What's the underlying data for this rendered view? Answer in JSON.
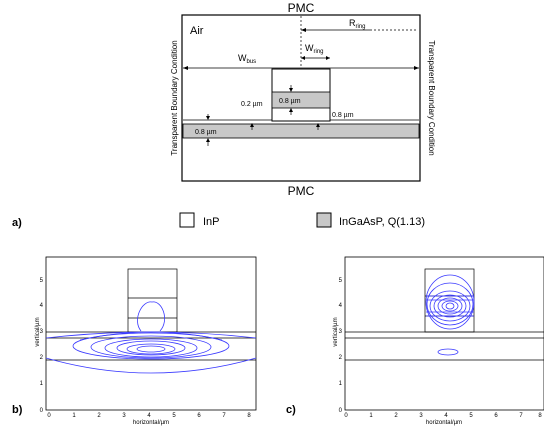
{
  "schematic": {
    "top_boundary": "PMC",
    "bottom_boundary": "PMC",
    "left_boundary": "Transparent Boundary Condition",
    "right_boundary": "Transparent Boundary Condition",
    "medium": "Air",
    "r_ring": {
      "main": "R",
      "sub": "ring"
    },
    "w_bus": {
      "main": "W",
      "sub": "bus"
    },
    "w_ring": {
      "main": "W",
      "sub": "ring"
    },
    "ring_thickness": "0.8 µm",
    "gap_thickness": "0.2 µm",
    "rib_height": "0.8 µm",
    "bus_thickness": "0.8 µm"
  },
  "legend": {
    "panel_label": "a)",
    "items": [
      {
        "label": "InP",
        "color": "#ffffff"
      },
      {
        "label": "InGaAsP, Q(1.13)",
        "color": "#c8c8c8"
      }
    ]
  },
  "plots": [
    {
      "panel_label": "b)",
      "xlabel": "horizontal/µm",
      "ylabel": "vertical/µm",
      "xticks": [
        "0",
        "1",
        "2",
        "3",
        "4",
        "5",
        "6",
        "7",
        "8"
      ],
      "yticks": [
        "0",
        "1",
        "2",
        "3",
        "4",
        "5"
      ],
      "mode": "bus"
    },
    {
      "panel_label": "c)",
      "xlabel": "horizontal/µm",
      "ylabel": "vertical/µm",
      "xticks": [
        "0",
        "1",
        "2",
        "3",
        "4",
        "5",
        "6",
        "7",
        "8"
      ],
      "yticks": [
        "0",
        "1",
        "2",
        "3",
        "4",
        "5"
      ],
      "mode": "ring"
    }
  ],
  "colors": {
    "contour": "#3a3aff",
    "fill": "#c8c8c8",
    "line": "#000000"
  }
}
